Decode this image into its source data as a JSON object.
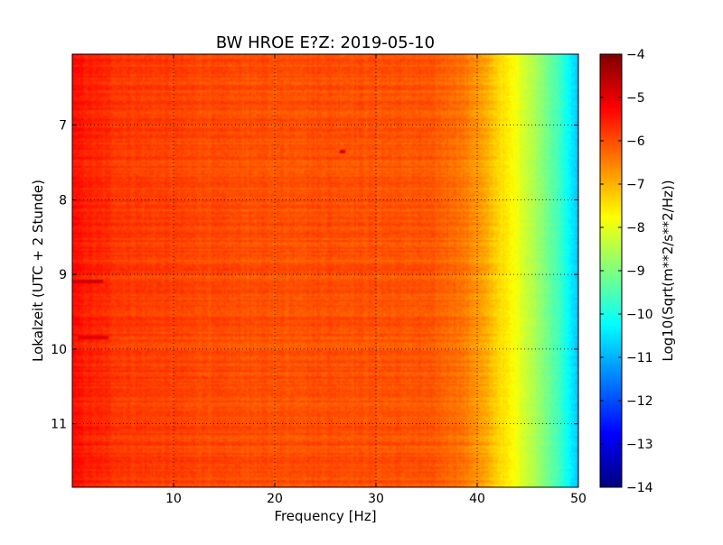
{
  "chart_data": {
    "type": "heatmap",
    "title": "BW HROE E?Z: 2019-05-10",
    "xlabel": "Frequency [Hz]",
    "ylabel": "Lokalzeit (UTC + 2 Stunde)",
    "xlim": [
      0,
      50
    ],
    "ylim": [
      6.05,
      11.85
    ],
    "y_axis_inverted": true,
    "x_ticks": [
      10,
      20,
      30,
      40,
      50
    ],
    "x_tick_labels": [
      "10",
      "20",
      "30",
      "40",
      "50"
    ],
    "y_ticks": [
      7,
      8,
      9,
      10,
      11
    ],
    "y_tick_labels": [
      "7",
      "8",
      "9",
      "10",
      "11"
    ],
    "grid": true,
    "grid_style": "dotted",
    "colormap": "jet",
    "colorbar": {
      "label": "Log10(Sqrt(m**2/s**2/Hz))",
      "range": [
        -14,
        -4
      ],
      "ticks": [
        -4,
        -5,
        -6,
        -7,
        -8,
        -9,
        -10,
        -11,
        -12,
        -13,
        -14
      ],
      "tick_labels": [
        "−4",
        "−5",
        "−6",
        "−7",
        "−8",
        "−9",
        "−10",
        "−11",
        "−12",
        "−13",
        "−14"
      ]
    },
    "spectrum_profile": {
      "frequency_hz": [
        0,
        2,
        5,
        10,
        15,
        20,
        25,
        30,
        35,
        38,
        40,
        41,
        42,
        43,
        44,
        45,
        46,
        47,
        48,
        49,
        50
      ],
      "log10_amplitude": [
        -5.4,
        -5.6,
        -5.8,
        -5.9,
        -6.0,
        -6.05,
        -6.0,
        -6.05,
        -6.1,
        -6.3,
        -6.7,
        -7.0,
        -7.3,
        -7.6,
        -7.9,
        -8.3,
        -8.7,
        -9.1,
        -9.6,
        -10.2,
        -10.9
      ]
    },
    "notable_features": [
      {
        "time_h": 9.1,
        "frequency_range_hz": [
          0,
          3
        ],
        "log10_amplitude": -4.8
      },
      {
        "time_h": 9.84,
        "frequency_range_hz": [
          0.5,
          3.5
        ],
        "log10_amplitude": -5.0
      },
      {
        "time_h": 7.36,
        "frequency_range_hz": [
          26.5,
          27
        ],
        "log10_amplitude": -4.9
      }
    ]
  }
}
